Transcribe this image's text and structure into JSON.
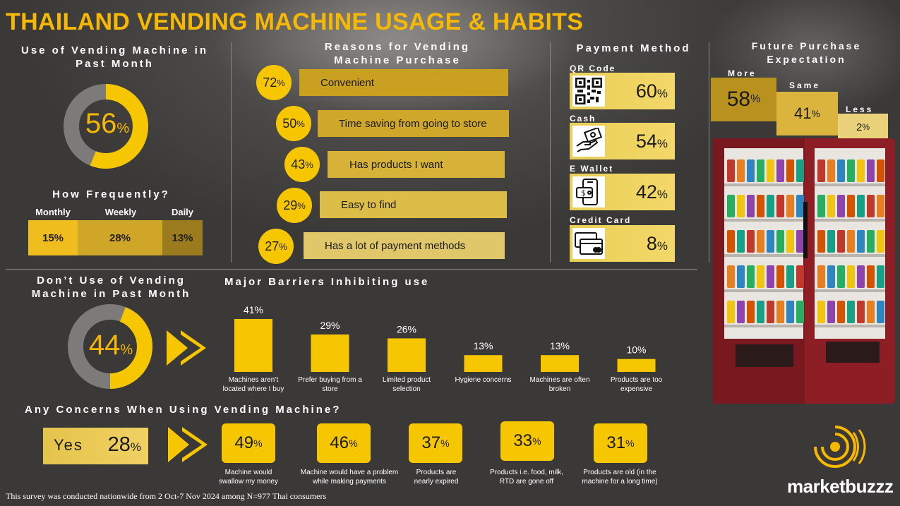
{
  "title": "THAILAND VENDING MACHINE USAGE & HABITS",
  "colors": {
    "accent": "#f6b800",
    "gold": "#c9a227",
    "grey": "#7c7b79"
  },
  "usage": {
    "heading": "Use of Vending Machine in Past Month",
    "value": "56",
    "unit": "%",
    "percent": 56
  },
  "frequency": {
    "heading": "How Frequently?",
    "items": [
      {
        "label": "Monthly",
        "value": "15%"
      },
      {
        "label": "Weekly",
        "value": "28%"
      },
      {
        "label": "Daily",
        "value": "13%"
      }
    ]
  },
  "reasons": {
    "heading": "Reasons for Vending Machine Purchase",
    "items": [
      {
        "value": "72",
        "label": "Convenient"
      },
      {
        "value": "50",
        "label": "Time saving from going to store"
      },
      {
        "value": "43",
        "label": "Has products I want"
      },
      {
        "value": "29",
        "label": "Easy to find"
      },
      {
        "value": "27",
        "label": "Has a lot of payment methods"
      }
    ]
  },
  "payment": {
    "heading": "Payment Method",
    "items": [
      {
        "label": "QR Code",
        "value": "60",
        "icon": "qr-code-icon"
      },
      {
        "label": "Cash",
        "value": "54",
        "icon": "cash-icon"
      },
      {
        "label": "E Wallet",
        "value": "42",
        "icon": "e-wallet-icon"
      },
      {
        "label": "Credit Card",
        "value": "8",
        "icon": "credit-card-icon"
      }
    ]
  },
  "future": {
    "heading": "Future Purchase Expectation",
    "items": [
      {
        "label": "More",
        "value": "58"
      },
      {
        "label": "Same",
        "value": "41"
      },
      {
        "label": "Less",
        "value": "2"
      }
    ]
  },
  "non_usage": {
    "heading": "Don’t Use of Vending Machine in Past Month",
    "value": "44",
    "unit": "%",
    "percent": 44
  },
  "barriers": {
    "heading": "Major Barriers Inhibiting use"
  },
  "concerns": {
    "heading": "Any Concerns When Using Vending Machine?",
    "yes_label": "Yes",
    "yes_value": "28",
    "items": [
      {
        "value": "49",
        "label": "Machine would swallow my money"
      },
      {
        "value": "46",
        "label": "Machine would have a problem while making  payments"
      },
      {
        "value": "37",
        "label": "Products are nearly expired"
      },
      {
        "value": "33",
        "label": "Products i.e. food, milk, RTD are gone off"
      },
      {
        "value": "31",
        "label": "Products are old (in the machine for a long time)"
      }
    ]
  },
  "footer": "This survey was conducted nationwide from 2 Oct-7 Nov 2024 among N=977 Thai consumers",
  "brand": "marketbuzzz",
  "chart_data": {
    "type": "bar",
    "title": "Major Barriers Inhibiting use",
    "categories": [
      "Machines aren’t located where I buy products",
      "Prefer buying from a store",
      "Limited product selection",
      "Hygiene concerns",
      "Machines are often broken",
      "Products are too expensive"
    ],
    "values": [
      41,
      29,
      26,
      13,
      13,
      10
    ],
    "value_labels": [
      "41%",
      "29%",
      "26%",
      "13%",
      "13%",
      "10%"
    ],
    "ylim": [
      0,
      41
    ],
    "grid": false
  }
}
